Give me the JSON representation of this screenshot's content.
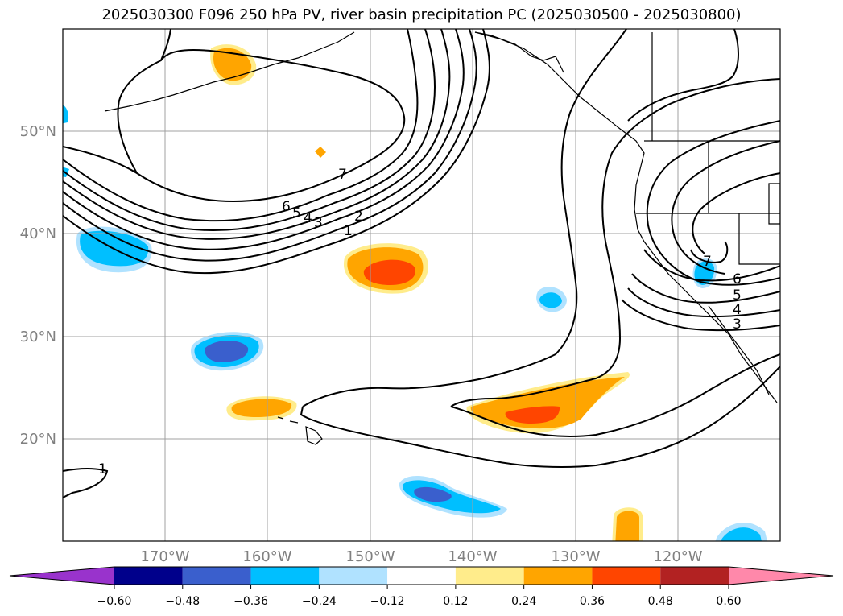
{
  "chart_data": {
    "type": "map-contour",
    "title": "2025030300 F096 250 hPa PV, river basin precipitation PC (2025030500 - 2025030800)",
    "lon_range": [
      -180,
      -110
    ],
    "lat_range": [
      10,
      60
    ],
    "lon_ticks": [
      "170°W",
      "160°W",
      "150°W",
      "140°W",
      "130°W",
      "120°W"
    ],
    "lat_ticks": [
      "20°N",
      "30°N",
      "40°N",
      "50°N"
    ],
    "grid": true,
    "contour_levels": [
      "1",
      "2",
      "3",
      "4",
      "5",
      "6",
      "7"
    ],
    "colorbar": {
      "orientation": "horizontal",
      "extend": "both",
      "tick_labels": [
        "−0.60",
        "−0.48",
        "−0.36",
        "−0.24",
        "−0.12",
        "0.12",
        "0.24",
        "0.36",
        "0.48",
        "0.60"
      ],
      "colors": [
        "#9933cc",
        "#00008b",
        "#3a5fcd",
        "#00bfff",
        "#b0e2ff",
        "#ffffff",
        "#ffec8b",
        "#ffa500",
        "#ff4500",
        "#b22222",
        "#ff88aa"
      ]
    }
  }
}
